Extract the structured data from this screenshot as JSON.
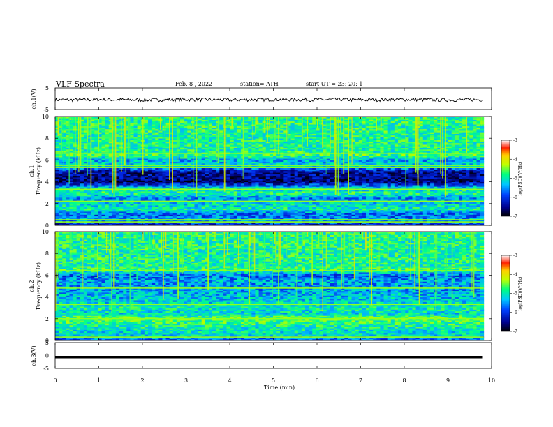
{
  "header": {
    "title": "VLF  Spectra",
    "date": "Feb. 8  , 2022",
    "station": "station= ATH",
    "start": "start  UT  =    23: 20: 1"
  },
  "chart_data": [
    {
      "type": "line",
      "name": "ch1-waveform",
      "ylabel": "ch.1(V)",
      "ylim": [
        -5,
        5
      ],
      "yticks": [
        "5",
        "-5"
      ],
      "xlim": [
        0,
        10
      ],
      "x": [
        0,
        0.5,
        1,
        1.5,
        2,
        2.5,
        3,
        3.5,
        4,
        4.5,
        5,
        5.5,
        6,
        6.5,
        7,
        7.5,
        8,
        8.5,
        9,
        9.5,
        9.8
      ],
      "values": [
        -0.5,
        -0.6,
        -0.4,
        -0.5,
        -0.6,
        -0.5,
        -0.4,
        -0.5,
        -0.6,
        -0.5,
        -0.4,
        -0.5,
        -0.5,
        -0.4,
        -0.6,
        -0.5,
        -0.4,
        -0.5,
        -0.6,
        -0.5,
        -0.5
      ]
    },
    {
      "type": "heatmap",
      "name": "ch1-spectrogram",
      "ylabel": "ch.1\nFrequency (kHz)",
      "ylim": [
        0,
        10
      ],
      "yticks": [
        "0",
        "2",
        "4",
        "6",
        "8",
        "10"
      ],
      "xlim": [
        0,
        10
      ],
      "colorbar": {
        "label": "log(PSD)(V²/Hz)",
        "range": [
          -7,
          -3
        ],
        "ticks": [
          "-3",
          "-4",
          "-5",
          "-6",
          "-7"
        ]
      },
      "freq_levels": [
        [
          0,
          -6.6
        ],
        [
          0.5,
          -5.8
        ],
        [
          1,
          -6.1
        ],
        [
          1.5,
          -5.4
        ],
        [
          2,
          -5.6
        ],
        [
          2.5,
          -5.9
        ],
        [
          3,
          -5.3
        ],
        [
          3.5,
          -5.7
        ],
        [
          4,
          -6.8
        ],
        [
          4.5,
          -6.7
        ],
        [
          5,
          -6.6
        ],
        [
          5.5,
          -5.5
        ],
        [
          6,
          -5.8
        ],
        [
          6.5,
          -5.2
        ],
        [
          7,
          -5.4
        ],
        [
          7.5,
          -5.3
        ],
        [
          8,
          -5.4
        ],
        [
          8.5,
          -5.3
        ],
        [
          9,
          -5.3
        ],
        [
          9.5,
          -5.3
        ],
        [
          10,
          -5.3
        ]
      ],
      "tones_khz": [
        0.3,
        0.5,
        2.2,
        3.3,
        5.3,
        5.5,
        6.6
      ]
    },
    {
      "type": "heatmap",
      "name": "ch2-spectrogram",
      "ylabel": "ch.2\nFrequency (kHz)",
      "ylim": [
        0,
        10
      ],
      "yticks": [
        "0",
        "2",
        "4",
        "6",
        "8",
        "10"
      ],
      "xlim": [
        0,
        10
      ],
      "colorbar": {
        "label": "log(PSD)(V²/Hz)",
        "range": [
          -7,
          -3
        ],
        "ticks": [
          "-3",
          "-4",
          "-5",
          "-6",
          "-7"
        ]
      },
      "freq_levels": [
        [
          0,
          -6.2
        ],
        [
          0.5,
          -5.6
        ],
        [
          1,
          -5.5
        ],
        [
          1.5,
          -5.3
        ],
        [
          2,
          -5.1
        ],
        [
          2.5,
          -5.6
        ],
        [
          3,
          -5.4
        ],
        [
          3.5,
          -5.6
        ],
        [
          4,
          -5.7
        ],
        [
          4.5,
          -5.8
        ],
        [
          5,
          -5.9
        ],
        [
          5.5,
          -5.8
        ],
        [
          6,
          -6.1
        ],
        [
          6.5,
          -5.2
        ],
        [
          7,
          -5.4
        ],
        [
          7.5,
          -5.3
        ],
        [
          8,
          -5.4
        ],
        [
          8.5,
          -5.3
        ],
        [
          9,
          -5.3
        ],
        [
          9.5,
          -5.3
        ],
        [
          10,
          -5.3
        ]
      ],
      "tones_khz": [
        0.3,
        2.0,
        3.3,
        4.8,
        6.4
      ]
    },
    {
      "type": "line",
      "name": "ch3-waveform",
      "ylabel": "ch.3(V)",
      "ylim": [
        -5,
        5
      ],
      "yticks": [
        "5",
        "0",
        "-5"
      ],
      "xlim": [
        0,
        10
      ],
      "x": [
        0,
        9.8
      ],
      "values": [
        -0.6,
        -0.6
      ]
    }
  ],
  "xaxis": {
    "label": "Time  (min)",
    "ticks": [
      "0",
      "1",
      "2",
      "3",
      "4",
      "5",
      "6",
      "7",
      "8",
      "9",
      "10"
    ]
  },
  "colors": {
    "axis": "#000000",
    "background": "#ffffff"
  }
}
